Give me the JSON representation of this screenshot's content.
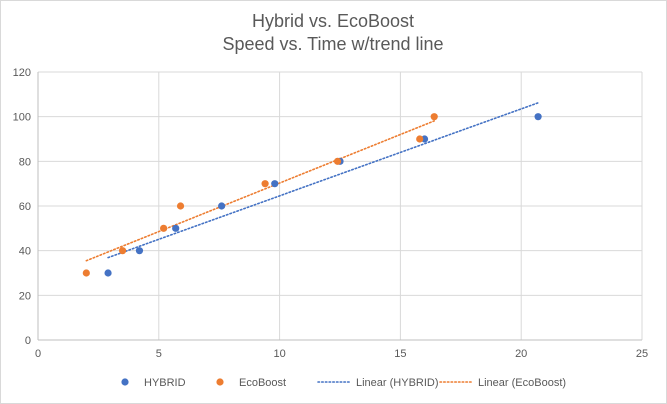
{
  "chart_data": {
    "type": "scatter",
    "title": "Hybrid vs. EcoBoost",
    "subtitle": "Speed vs. Time w/trend line",
    "xlabel": "",
    "ylabel": "",
    "xlim": [
      0,
      25
    ],
    "ylim": [
      0,
      120
    ],
    "xticks": [
      0,
      5,
      10,
      15,
      20,
      25
    ],
    "yticks": [
      0,
      20,
      40,
      60,
      80,
      100,
      120
    ],
    "grid": "horizontal",
    "legend_position": "bottom",
    "series": [
      {
        "name": "HYBRID",
        "color": "#4472c4",
        "points": [
          {
            "x": 2.9,
            "y": 30
          },
          {
            "x": 4.2,
            "y": 40
          },
          {
            "x": 5.7,
            "y": 50
          },
          {
            "x": 7.6,
            "y": 60
          },
          {
            "x": 9.8,
            "y": 70
          },
          {
            "x": 12.5,
            "y": 80
          },
          {
            "x": 16.0,
            "y": 90
          },
          {
            "x": 20.7,
            "y": 100
          }
        ]
      },
      {
        "name": "EcoBoost",
        "color": "#ed7d31",
        "points": [
          {
            "x": 2.0,
            "y": 30
          },
          {
            "x": 3.5,
            "y": 40
          },
          {
            "x": 5.2,
            "y": 50
          },
          {
            "x": 5.9,
            "y": 60
          },
          {
            "x": 9.4,
            "y": 70
          },
          {
            "x": 12.4,
            "y": 80
          },
          {
            "x": 15.8,
            "y": 90
          },
          {
            "x": 16.4,
            "y": 100
          }
        ]
      }
    ],
    "trendlines": [
      {
        "name": "Linear (HYBRID)",
        "color": "#4472c4",
        "type": "linear",
        "style": "dotted",
        "from": {
          "x": 2.9,
          "y": 36.9
        },
        "to": {
          "x": 20.7,
          "y": 106.2
        }
      },
      {
        "name": "Linear (EcoBoost)",
        "color": "#ed7d31",
        "type": "linear",
        "style": "dotted",
        "from": {
          "x": 2.0,
          "y": 35.5
        },
        "to": {
          "x": 16.4,
          "y": 98.1
        }
      }
    ]
  }
}
